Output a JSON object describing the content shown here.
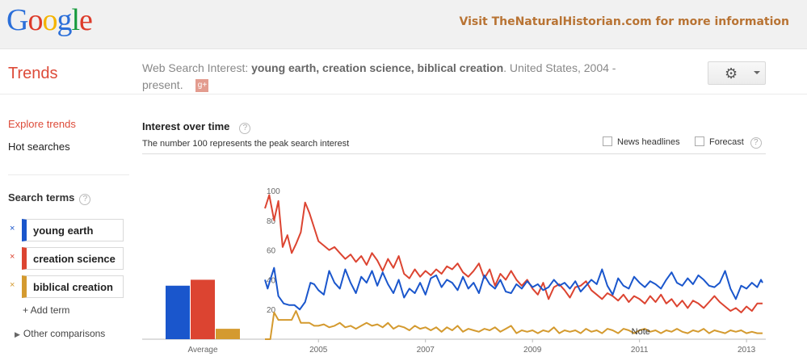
{
  "topbar": {
    "logo_letters": [
      "G",
      "o",
      "o",
      "g",
      "l",
      "e"
    ],
    "logo_colors": [
      "#2b6fd9",
      "#dd3b2a",
      "#f4b400",
      "#2b6fd9",
      "#159a3c",
      "#dd3b2a"
    ],
    "promo": "Visit TheNaturalHistorian.com for more information"
  },
  "header": {
    "title": "Trends",
    "query_prefix": "Web Search Interest:",
    "query_terms": "young earth, creation science, biblical creation",
    "query_suffix": ". United States, 2004 - present.",
    "gplus": "g+",
    "settings_icon": "gear-icon"
  },
  "sidebar": {
    "explore": "Explore trends",
    "hot": "Hot searches",
    "search_terms_label": "Search terms",
    "help": "?",
    "terms": [
      {
        "label": "young earth",
        "color": "#1a56cc"
      },
      {
        "label": "creation science",
        "color": "#dc4431"
      },
      {
        "label": "biblical creation",
        "color": "#d49a2f"
      }
    ],
    "remove": "×",
    "add_term": "+ Add term",
    "other": "Other comparisons"
  },
  "main": {
    "title": "Interest over time",
    "subtitle": "The number 100 represents the peak search interest",
    "news_headlines": "News headlines",
    "forecast": "Forecast",
    "help": "?"
  },
  "chart_data": {
    "type": "line",
    "y_ticks": [
      "100",
      "80",
      "60",
      "40",
      "20"
    ],
    "ylim": [
      0,
      100
    ],
    "x_ticks": [
      "2005",
      "2007",
      "2009",
      "2011",
      "2013"
    ],
    "average_label": "Average",
    "averages": [
      {
        "name": "young earth",
        "value": 36,
        "color": "#1a56cc"
      },
      {
        "name": "creation science",
        "value": 40,
        "color": "#dc4431"
      },
      {
        "name": "biblical creation",
        "value": 7,
        "color": "#d49a2f"
      }
    ],
    "annotation": "Note",
    "x_start": 2004.0,
    "x_end": 2013.3,
    "series": [
      {
        "name": "creation science",
        "color": "#dc4431",
        "points": [
          [
            2004.0,
            88
          ],
          [
            2004.08,
            97
          ],
          [
            2004.17,
            80
          ],
          [
            2004.25,
            93
          ],
          [
            2004.33,
            62
          ],
          [
            2004.42,
            70
          ],
          [
            2004.5,
            58
          ],
          [
            2004.58,
            64
          ],
          [
            2004.67,
            72
          ],
          [
            2004.75,
            92
          ],
          [
            2004.83,
            85
          ],
          [
            2004.92,
            75
          ],
          [
            2005.0,
            66
          ],
          [
            2005.1,
            63
          ],
          [
            2005.2,
            60
          ],
          [
            2005.3,
            62
          ],
          [
            2005.4,
            58
          ],
          [
            2005.5,
            54
          ],
          [
            2005.6,
            57
          ],
          [
            2005.7,
            52
          ],
          [
            2005.8,
            56
          ],
          [
            2005.9,
            50
          ],
          [
            2006.0,
            58
          ],
          [
            2006.1,
            53
          ],
          [
            2006.2,
            46
          ],
          [
            2006.3,
            54
          ],
          [
            2006.4,
            48
          ],
          [
            2006.5,
            56
          ],
          [
            2006.6,
            44
          ],
          [
            2006.7,
            41
          ],
          [
            2006.8,
            47
          ],
          [
            2006.9,
            42
          ],
          [
            2007.0,
            46
          ],
          [
            2007.1,
            43
          ],
          [
            2007.2,
            47
          ],
          [
            2007.3,
            44
          ],
          [
            2007.4,
            49
          ],
          [
            2007.5,
            47
          ],
          [
            2007.6,
            51
          ],
          [
            2007.7,
            45
          ],
          [
            2007.8,
            42
          ],
          [
            2007.9,
            46
          ],
          [
            2008.0,
            51
          ],
          [
            2008.1,
            41
          ],
          [
            2008.2,
            47
          ],
          [
            2008.3,
            36
          ],
          [
            2008.4,
            44
          ],
          [
            2008.5,
            40
          ],
          [
            2008.6,
            46
          ],
          [
            2008.7,
            40
          ],
          [
            2008.8,
            36
          ],
          [
            2008.9,
            40
          ],
          [
            2009.0,
            34
          ],
          [
            2009.1,
            30
          ],
          [
            2009.2,
            38
          ],
          [
            2009.3,
            27
          ],
          [
            2009.4,
            35
          ],
          [
            2009.5,
            37
          ],
          [
            2009.6,
            33
          ],
          [
            2009.7,
            28
          ],
          [
            2009.8,
            35
          ],
          [
            2009.9,
            36
          ],
          [
            2010.0,
            39
          ],
          [
            2010.1,
            33
          ],
          [
            2010.2,
            30
          ],
          [
            2010.3,
            27
          ],
          [
            2010.4,
            31
          ],
          [
            2010.5,
            29
          ],
          [
            2010.6,
            26
          ],
          [
            2010.7,
            30
          ],
          [
            2010.8,
            25
          ],
          [
            2010.9,
            29
          ],
          [
            2011.0,
            27
          ],
          [
            2011.1,
            24
          ],
          [
            2011.2,
            29
          ],
          [
            2011.3,
            25
          ],
          [
            2011.4,
            30
          ],
          [
            2011.5,
            24
          ],
          [
            2011.6,
            27
          ],
          [
            2011.7,
            22
          ],
          [
            2011.8,
            26
          ],
          [
            2011.9,
            21
          ],
          [
            2012.0,
            26
          ],
          [
            2012.1,
            24
          ],
          [
            2012.2,
            21
          ],
          [
            2012.3,
            25
          ],
          [
            2012.4,
            29
          ],
          [
            2012.5,
            25
          ],
          [
            2012.6,
            22
          ],
          [
            2012.7,
            19
          ],
          [
            2012.8,
            21
          ],
          [
            2012.9,
            18
          ],
          [
            2013.0,
            22
          ],
          [
            2013.1,
            19
          ],
          [
            2013.2,
            24
          ],
          [
            2013.3,
            24
          ]
        ]
      },
      {
        "name": "young earth",
        "color": "#1a56cc",
        "points": [
          [
            2004.0,
            40
          ],
          [
            2004.05,
            34
          ],
          [
            2004.1,
            40
          ],
          [
            2004.17,
            48
          ],
          [
            2004.25,
            29
          ],
          [
            2004.35,
            24
          ],
          [
            2004.45,
            23
          ],
          [
            2004.55,
            23
          ],
          [
            2004.65,
            20
          ],
          [
            2004.75,
            25
          ],
          [
            2004.85,
            38
          ],
          [
            2004.92,
            37
          ],
          [
            2005.0,
            33
          ],
          [
            2005.1,
            30
          ],
          [
            2005.2,
            46
          ],
          [
            2005.3,
            38
          ],
          [
            2005.4,
            34
          ],
          [
            2005.5,
            47
          ],
          [
            2005.6,
            38
          ],
          [
            2005.7,
            31
          ],
          [
            2005.8,
            42
          ],
          [
            2005.9,
            38
          ],
          [
            2006.0,
            46
          ],
          [
            2006.1,
            36
          ],
          [
            2006.2,
            45
          ],
          [
            2006.3,
            37
          ],
          [
            2006.4,
            31
          ],
          [
            2006.5,
            40
          ],
          [
            2006.6,
            28
          ],
          [
            2006.7,
            34
          ],
          [
            2006.8,
            31
          ],
          [
            2006.9,
            38
          ],
          [
            2007.0,
            30
          ],
          [
            2007.1,
            41
          ],
          [
            2007.2,
            43
          ],
          [
            2007.3,
            35
          ],
          [
            2007.4,
            40
          ],
          [
            2007.5,
            38
          ],
          [
            2007.6,
            33
          ],
          [
            2007.7,
            42
          ],
          [
            2007.8,
            34
          ],
          [
            2007.9,
            38
          ],
          [
            2008.0,
            31
          ],
          [
            2008.1,
            43
          ],
          [
            2008.2,
            37
          ],
          [
            2008.3,
            34
          ],
          [
            2008.4,
            40
          ],
          [
            2008.5,
            32
          ],
          [
            2008.6,
            31
          ],
          [
            2008.7,
            37
          ],
          [
            2008.8,
            34
          ],
          [
            2008.9,
            39
          ],
          [
            2009.0,
            35
          ],
          [
            2009.1,
            37
          ],
          [
            2009.2,
            33
          ],
          [
            2009.3,
            35
          ],
          [
            2009.4,
            40
          ],
          [
            2009.5,
            36
          ],
          [
            2009.6,
            38
          ],
          [
            2009.7,
            34
          ],
          [
            2009.8,
            39
          ],
          [
            2009.9,
            32
          ],
          [
            2010.0,
            36
          ],
          [
            2010.1,
            40
          ],
          [
            2010.2,
            37
          ],
          [
            2010.3,
            47
          ],
          [
            2010.4,
            36
          ],
          [
            2010.5,
            30
          ],
          [
            2010.6,
            41
          ],
          [
            2010.7,
            36
          ],
          [
            2010.8,
            34
          ],
          [
            2010.9,
            42
          ],
          [
            2011.0,
            38
          ],
          [
            2011.1,
            35
          ],
          [
            2011.2,
            39
          ],
          [
            2011.3,
            37
          ],
          [
            2011.4,
            34
          ],
          [
            2011.5,
            40
          ],
          [
            2011.6,
            45
          ],
          [
            2011.7,
            38
          ],
          [
            2011.8,
            36
          ],
          [
            2011.9,
            41
          ],
          [
            2012.0,
            37
          ],
          [
            2012.1,
            43
          ],
          [
            2012.2,
            40
          ],
          [
            2012.3,
            36
          ],
          [
            2012.4,
            35
          ],
          [
            2012.5,
            38
          ],
          [
            2012.6,
            46
          ],
          [
            2012.7,
            34
          ],
          [
            2012.8,
            27
          ],
          [
            2012.9,
            36
          ],
          [
            2013.0,
            34
          ],
          [
            2013.1,
            38
          ],
          [
            2013.2,
            35
          ],
          [
            2013.27,
            40
          ],
          [
            2013.3,
            38
          ]
        ]
      },
      {
        "name": "biblical creation",
        "color": "#d49a2f",
        "points": [
          [
            2004.0,
            0
          ],
          [
            2004.1,
            0
          ],
          [
            2004.17,
            18
          ],
          [
            2004.25,
            13
          ],
          [
            2004.33,
            13
          ],
          [
            2004.42,
            13
          ],
          [
            2004.5,
            13
          ],
          [
            2004.58,
            19
          ],
          [
            2004.67,
            11
          ],
          [
            2004.75,
            11
          ],
          [
            2004.83,
            11
          ],
          [
            2004.92,
            9
          ],
          [
            2005.0,
            9
          ],
          [
            2005.1,
            10
          ],
          [
            2005.2,
            8
          ],
          [
            2005.3,
            9
          ],
          [
            2005.4,
            11
          ],
          [
            2005.5,
            8
          ],
          [
            2005.6,
            9
          ],
          [
            2005.7,
            7
          ],
          [
            2005.8,
            9
          ],
          [
            2005.9,
            11
          ],
          [
            2006.0,
            9
          ],
          [
            2006.1,
            10
          ],
          [
            2006.2,
            8
          ],
          [
            2006.3,
            11
          ],
          [
            2006.4,
            7
          ],
          [
            2006.5,
            9
          ],
          [
            2006.6,
            8
          ],
          [
            2006.7,
            6
          ],
          [
            2006.8,
            9
          ],
          [
            2006.9,
            7
          ],
          [
            2007.0,
            8
          ],
          [
            2007.1,
            6
          ],
          [
            2007.2,
            8
          ],
          [
            2007.3,
            5
          ],
          [
            2007.4,
            8
          ],
          [
            2007.5,
            6
          ],
          [
            2007.6,
            9
          ],
          [
            2007.7,
            5
          ],
          [
            2007.8,
            7
          ],
          [
            2007.9,
            6
          ],
          [
            2008.0,
            5
          ],
          [
            2008.1,
            7
          ],
          [
            2008.2,
            6
          ],
          [
            2008.3,
            8
          ],
          [
            2008.4,
            5
          ],
          [
            2008.5,
            7
          ],
          [
            2008.6,
            9
          ],
          [
            2008.7,
            4
          ],
          [
            2008.8,
            6
          ],
          [
            2008.9,
            5
          ],
          [
            2009.0,
            6
          ],
          [
            2009.1,
            4
          ],
          [
            2009.2,
            6
          ],
          [
            2009.3,
            5
          ],
          [
            2009.4,
            8
          ],
          [
            2009.5,
            4
          ],
          [
            2009.6,
            6
          ],
          [
            2009.7,
            5
          ],
          [
            2009.8,
            6
          ],
          [
            2009.9,
            4
          ],
          [
            2010.0,
            7
          ],
          [
            2010.1,
            5
          ],
          [
            2010.2,
            6
          ],
          [
            2010.3,
            4
          ],
          [
            2010.4,
            7
          ],
          [
            2010.5,
            6
          ],
          [
            2010.6,
            4
          ],
          [
            2010.7,
            7
          ],
          [
            2010.8,
            6
          ],
          [
            2010.9,
            4
          ],
          [
            2011.0,
            6
          ],
          [
            2011.1,
            7
          ],
          [
            2011.2,
            5
          ],
          [
            2011.3,
            6
          ],
          [
            2011.4,
            4
          ],
          [
            2011.5,
            6
          ],
          [
            2011.6,
            5
          ],
          [
            2011.7,
            7
          ],
          [
            2011.8,
            5
          ],
          [
            2011.9,
            4
          ],
          [
            2012.0,
            6
          ],
          [
            2012.1,
            5
          ],
          [
            2012.2,
            7
          ],
          [
            2012.3,
            4
          ],
          [
            2012.4,
            6
          ],
          [
            2012.5,
            5
          ],
          [
            2012.6,
            4
          ],
          [
            2012.7,
            6
          ],
          [
            2012.8,
            5
          ],
          [
            2012.9,
            6
          ],
          [
            2013.0,
            4
          ],
          [
            2013.1,
            5
          ],
          [
            2013.2,
            4
          ],
          [
            2013.3,
            4
          ]
        ]
      }
    ]
  }
}
